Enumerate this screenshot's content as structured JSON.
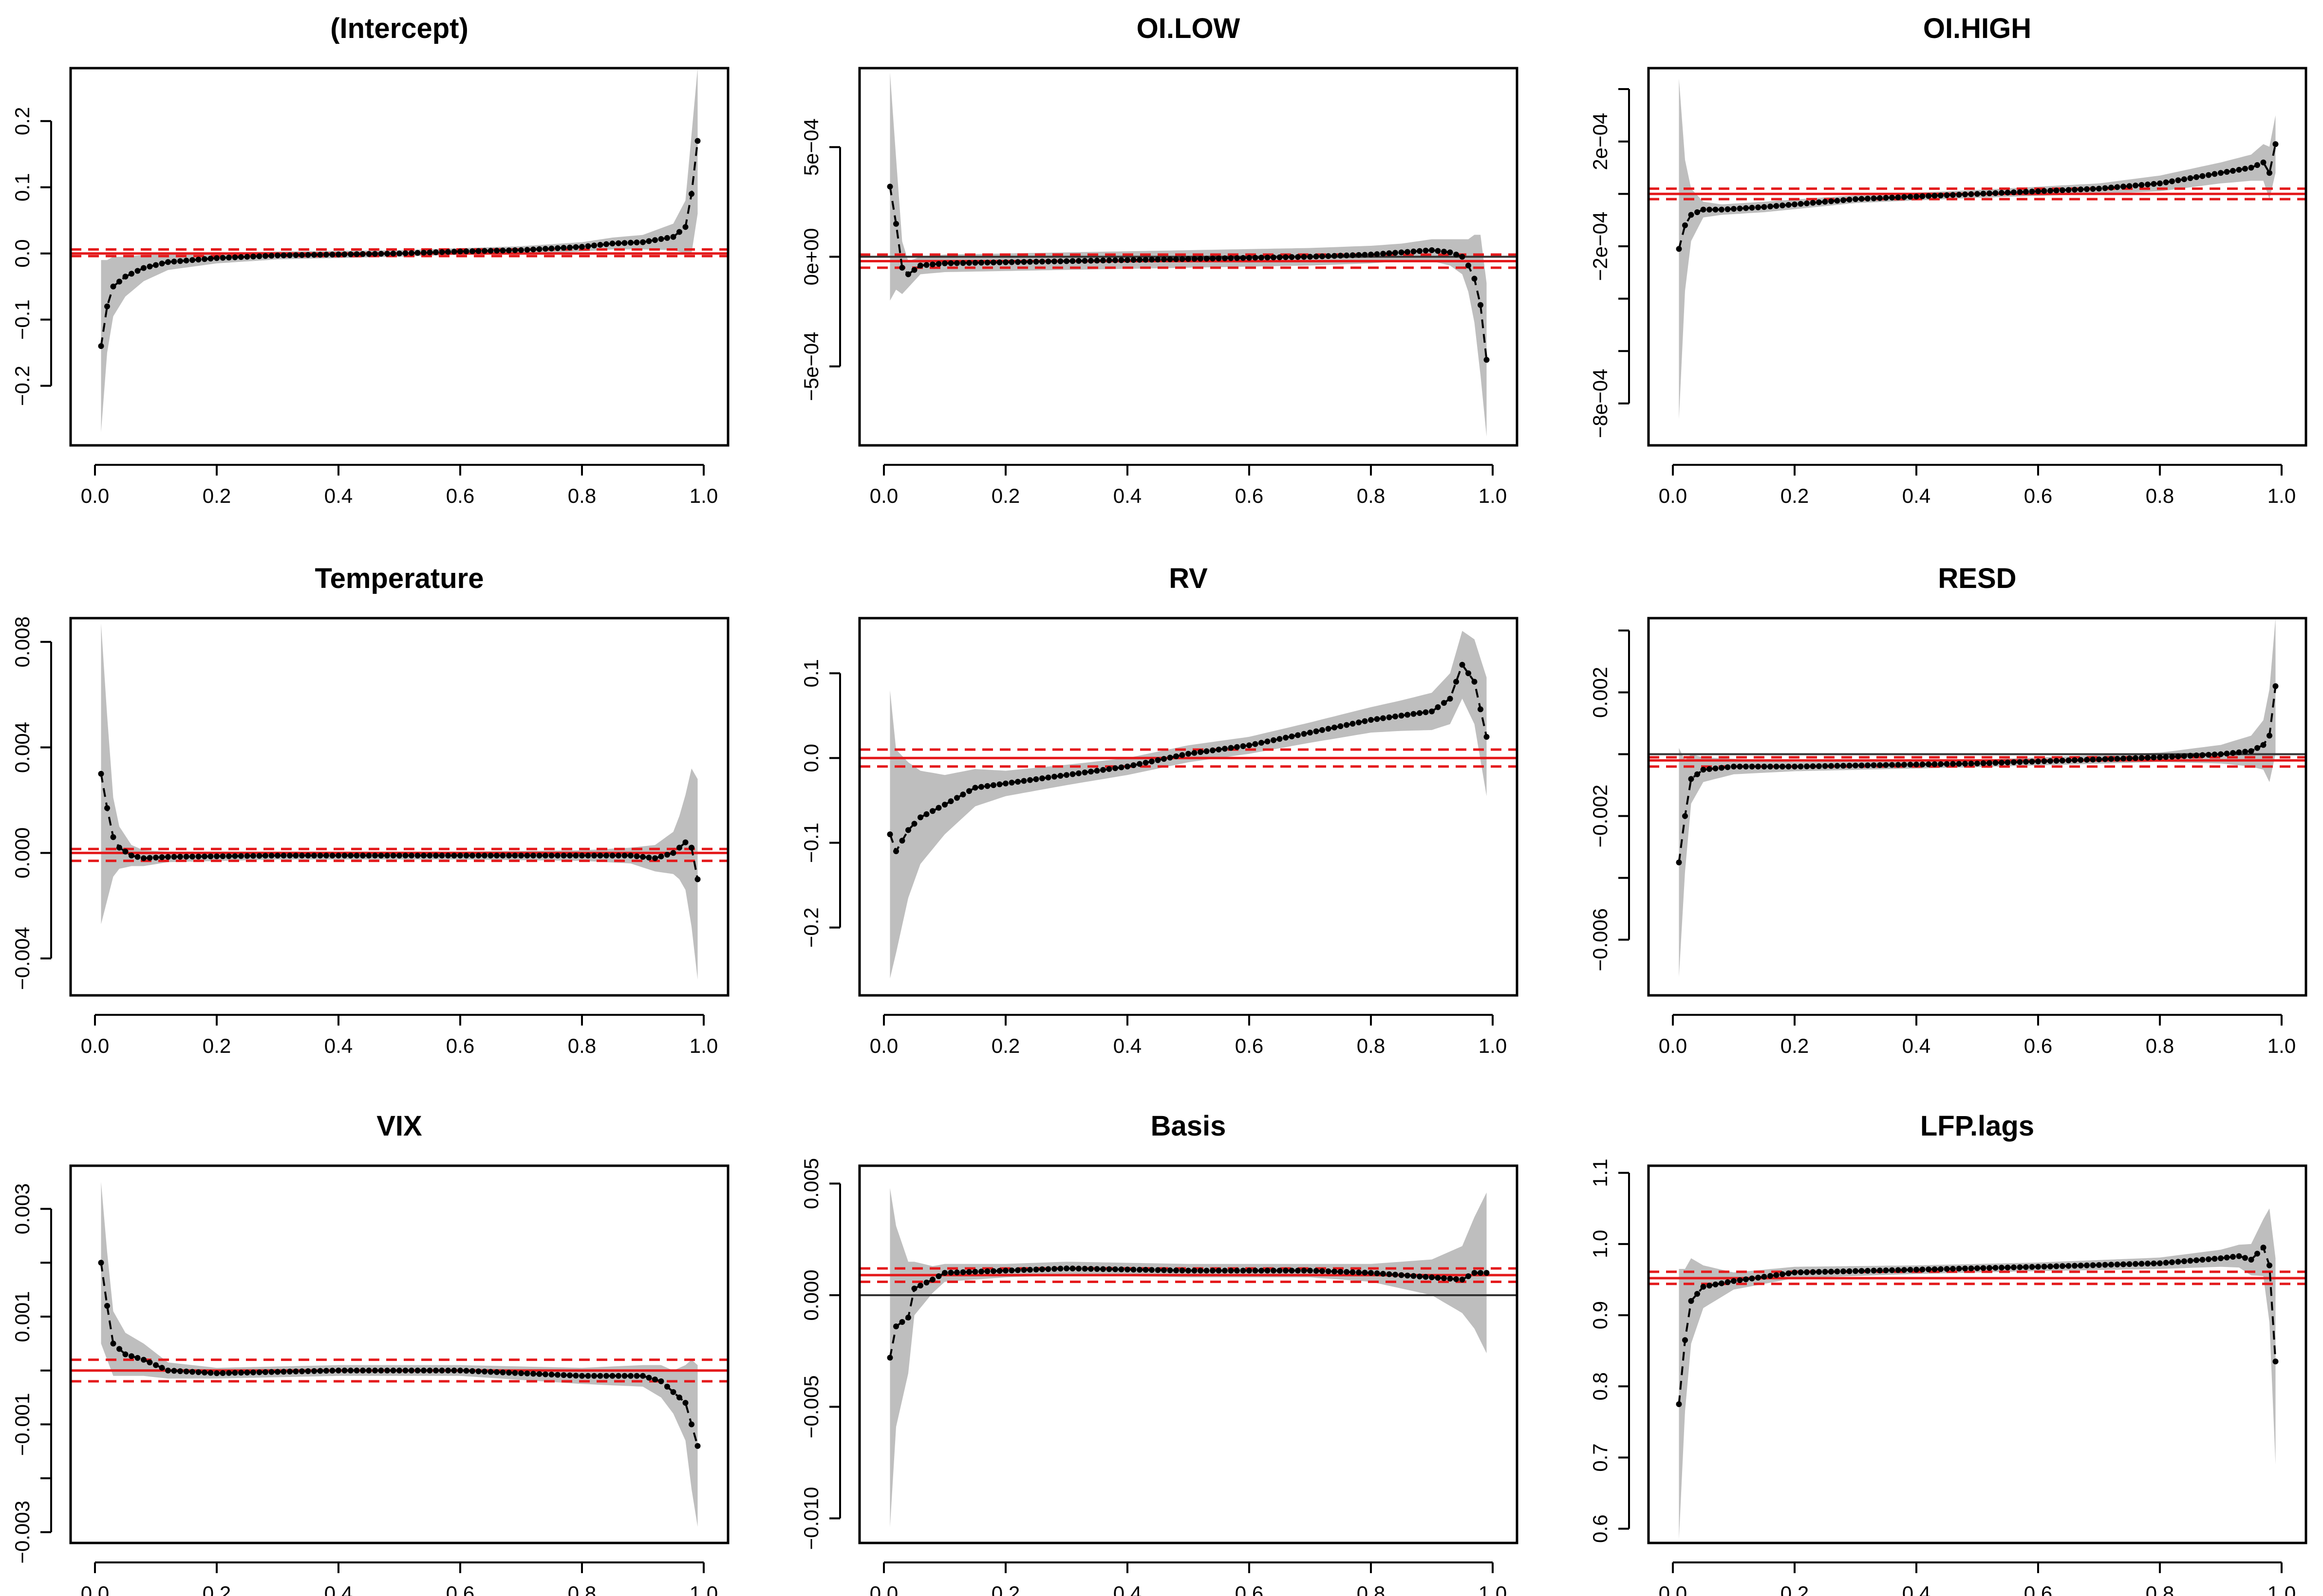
{
  "figure_caption": "",
  "chart_data": [
    {
      "type": "line",
      "title": "(Intercept)",
      "xlabel": "",
      "ylabel": "",
      "xlim": [
        0.0,
        1.0
      ],
      "ylim": [
        -0.29,
        0.28
      ],
      "x_ticks": [
        "0.0",
        "0.2",
        "0.4",
        "0.6",
        "0.8",
        "1.0"
      ],
      "y_ticks": [
        {
          "value": -0.2,
          "label": "−0.2"
        },
        {
          "value": -0.1,
          "label": "−0.1"
        },
        {
          "value": 0.0,
          "label": "0.0"
        },
        {
          "value": 0.1,
          "label": "0.1"
        },
        {
          "value": 0.2,
          "label": "0.2"
        }
      ],
      "anchors": [
        [
          0.01,
          -0.14,
          0.13
        ],
        [
          0.02,
          -0.08,
          0.07
        ],
        [
          0.03,
          -0.05,
          0.045
        ],
        [
          0.05,
          -0.035,
          0.03
        ],
        [
          0.08,
          -0.022,
          0.02
        ],
        [
          0.12,
          -0.013,
          0.012
        ],
        [
          0.2,
          -0.007,
          0.008
        ],
        [
          0.3,
          -0.003,
          0.006
        ],
        [
          0.5,
          0.0,
          0.005
        ],
        [
          0.6,
          0.003,
          0.005
        ],
        [
          0.7,
          0.005,
          0.006
        ],
        [
          0.8,
          0.01,
          0.007
        ],
        [
          0.85,
          0.015,
          0.009
        ],
        [
          0.9,
          0.017,
          0.011
        ],
        [
          0.95,
          0.025,
          0.02
        ],
        [
          0.97,
          0.04,
          0.04
        ],
        [
          0.98,
          0.09,
          0.09
        ],
        [
          0.99,
          0.17,
          0.11
        ]
      ],
      "ols_estimate": 0.0,
      "ols_band": [
        -0.004,
        0.006
      ],
      "zero_line": 0.0
    },
    {
      "type": "line",
      "title": "OI.LOW",
      "xlabel": "",
      "ylabel": "",
      "xlim": [
        0.0,
        1.0
      ],
      "ylim": [
        -0.00086,
        0.00086
      ],
      "x_ticks": [
        "0.0",
        "0.2",
        "0.4",
        "0.6",
        "0.8",
        "1.0"
      ],
      "y_ticks": [
        {
          "value": -0.0005,
          "label": "−5e−04"
        },
        {
          "value": 0.0,
          "label": "0e+00"
        },
        {
          "value": 0.0005,
          "label": "5e−04"
        }
      ],
      "anchors": [
        [
          0.01,
          0.00032,
          0.00052
        ],
        [
          0.02,
          0.00015,
          0.0003
        ],
        [
          0.03,
          -5e-05,
          0.00012
        ],
        [
          0.04,
          -8e-05,
          6e-05
        ],
        [
          0.06,
          -4e-05,
          4e-05
        ],
        [
          0.1,
          -3e-05,
          4e-05
        ],
        [
          0.3,
          -2e-05,
          4e-05
        ],
        [
          0.5,
          -1e-05,
          4e-05
        ],
        [
          0.7,
          0.0,
          4e-05
        ],
        [
          0.8,
          1e-05,
          4e-05
        ],
        [
          0.85,
          2e-05,
          4e-05
        ],
        [
          0.9,
          3e-05,
          5e-05
        ],
        [
          0.93,
          2e-05,
          6e-05
        ],
        [
          0.95,
          0.0,
          8e-05
        ],
        [
          0.96,
          -4e-05,
          0.00012
        ],
        [
          0.97,
          -0.0001,
          0.0002
        ],
        [
          0.98,
          -0.00022,
          0.00032
        ],
        [
          0.99,
          -0.00047,
          0.00035
        ]
      ],
      "ols_estimate": -2e-05,
      "ols_band": [
        -5e-05,
        1e-05
      ],
      "zero_line": 0.0
    },
    {
      "type": "line",
      "title": "OI.HIGH",
      "xlabel": "",
      "ylabel": "",
      "xlim": [
        0.0,
        1.0
      ],
      "ylim": [
        -0.00096,
        0.00048
      ],
      "x_ticks": [
        "0.0",
        "0.2",
        "0.4",
        "0.6",
        "0.8",
        "1.0"
      ],
      "y_ticks": [
        {
          "value": -0.0008,
          "label": "−8e−04"
        },
        {
          "value": -0.0006,
          "label": ""
        },
        {
          "value": -0.0004,
          "label": ""
        },
        {
          "value": -0.0002,
          "label": "−2e−04"
        },
        {
          "value": 0.0,
          "label": ""
        },
        {
          "value": 0.0002,
          "label": "2e−04"
        },
        {
          "value": 0.0004,
          "label": ""
        }
      ],
      "anchors": [
        [
          0.01,
          -0.00021,
          0.00065
        ],
        [
          0.02,
          -0.00012,
          0.00025
        ],
        [
          0.03,
          -8e-05,
          0.0001
        ],
        [
          0.05,
          -6e-05,
          3e-05
        ],
        [
          0.08,
          -6e-05,
          2e-05
        ],
        [
          0.15,
          -5e-05,
          2e-05
        ],
        [
          0.3,
          -2e-05,
          1.5e-05
        ],
        [
          0.5,
          0.0,
          1.5e-05
        ],
        [
          0.7,
          2e-05,
          2e-05
        ],
        [
          0.8,
          4e-05,
          3e-05
        ],
        [
          0.9,
          8e-05,
          4e-05
        ],
        [
          0.95,
          0.0001,
          5e-05
        ],
        [
          0.97,
          0.00012,
          7e-05
        ],
        [
          0.98,
          8e-05,
          0.0001
        ],
        [
          0.99,
          0.00019,
          0.00011
        ]
      ],
      "ols_estimate": 0.0,
      "ols_band": [
        -2e-05,
        2e-05
      ],
      "zero_line": 0.0
    },
    {
      "type": "line",
      "title": "Temperature",
      "xlabel": "",
      "ylabel": "",
      "xlim": [
        0.0,
        1.0
      ],
      "ylim": [
        -0.0054,
        0.0089
      ],
      "x_ticks": [
        "0.0",
        "0.2",
        "0.4",
        "0.6",
        "0.8",
        "1.0"
      ],
      "y_ticks": [
        {
          "value": -0.004,
          "label": "−0.004"
        },
        {
          "value": 0.0,
          "label": "0.000"
        },
        {
          "value": 0.004,
          "label": "0.004"
        },
        {
          "value": 0.008,
          "label": "0.008"
        }
      ],
      "anchors": [
        [
          0.01,
          0.003,
          0.0057
        ],
        [
          0.02,
          0.0017,
          0.0035
        ],
        [
          0.03,
          0.0006,
          0.0015
        ],
        [
          0.04,
          0.0002,
          0.0008
        ],
        [
          0.06,
          -0.0001,
          0.0004
        ],
        [
          0.08,
          -0.0002,
          0.0003
        ],
        [
          0.12,
          -0.00015,
          0.0002
        ],
        [
          0.3,
          -0.0001,
          0.00015
        ],
        [
          0.6,
          -0.0001,
          0.00015
        ],
        [
          0.8,
          -0.0001,
          0.0002
        ],
        [
          0.88,
          -0.0001,
          0.0003
        ],
        [
          0.92,
          -0.0002,
          0.0005
        ],
        [
          0.95,
          0.0,
          0.0008
        ],
        [
          0.96,
          0.0002,
          0.0012
        ],
        [
          0.97,
          0.0004,
          0.0018
        ],
        [
          0.98,
          0.0002,
          0.003
        ],
        [
          0.99,
          -0.001,
          0.0038
        ]
      ],
      "ols_estimate": 0.0,
      "ols_band": [
        -0.0003,
        0.00015
      ],
      "zero_line": 0.0
    },
    {
      "type": "line",
      "title": "RV",
      "xlabel": "",
      "ylabel": "",
      "xlim": [
        0.0,
        1.0
      ],
      "ylim": [
        -0.28,
        0.165
      ],
      "x_ticks": [
        "0.0",
        "0.2",
        "0.4",
        "0.6",
        "0.8",
        "1.0"
      ],
      "y_ticks": [
        {
          "value": -0.2,
          "label": "−0.2"
        },
        {
          "value": -0.1,
          "label": "−0.1"
        },
        {
          "value": 0.0,
          "label": "0.0"
        },
        {
          "value": 0.1,
          "label": "0.1"
        }
      ],
      "anchors": [
        [
          0.01,
          -0.09,
          0.17
        ],
        [
          0.02,
          -0.11,
          0.12
        ],
        [
          0.04,
          -0.085,
          0.08
        ],
        [
          0.06,
          -0.07,
          0.055
        ],
        [
          0.1,
          -0.055,
          0.035
        ],
        [
          0.15,
          -0.035,
          0.022
        ],
        [
          0.2,
          -0.03,
          0.015
        ],
        [
          0.3,
          -0.02,
          0.012
        ],
        [
          0.4,
          -0.01,
          0.01
        ],
        [
          0.5,
          0.005,
          0.01
        ],
        [
          0.6,
          0.015,
          0.01
        ],
        [
          0.7,
          0.03,
          0.012
        ],
        [
          0.8,
          0.045,
          0.015
        ],
        [
          0.85,
          0.05,
          0.018
        ],
        [
          0.9,
          0.055,
          0.022
        ],
        [
          0.93,
          0.07,
          0.03
        ],
        [
          0.95,
          0.11,
          0.04
        ],
        [
          0.97,
          0.09,
          0.05
        ],
        [
          0.99,
          0.025,
          0.07
        ]
      ],
      "ols_estimate": 0.0,
      "ols_band": [
        -0.01,
        0.01
      ],
      "zero_line": 0.0
    },
    {
      "type": "line",
      "title": "RESD",
      "xlabel": "",
      "ylabel": "",
      "xlim": [
        0.0,
        1.0
      ],
      "ylim": [
        -0.0078,
        0.0044
      ],
      "x_ticks": [
        "0.0",
        "0.2",
        "0.4",
        "0.6",
        "0.8",
        "1.0"
      ],
      "y_ticks": [
        {
          "value": -0.006,
          "label": "−0.006"
        },
        {
          "value": -0.004,
          "label": ""
        },
        {
          "value": -0.002,
          "label": "−0.002"
        },
        {
          "value": 0.0,
          "label": ""
        },
        {
          "value": 0.002,
          "label": "0.002"
        },
        {
          "value": 0.004,
          "label": ""
        }
      ],
      "anchors": [
        [
          0.01,
          -0.0035,
          0.0037
        ],
        [
          0.02,
          -0.002,
          0.0018
        ],
        [
          0.03,
          -0.0008,
          0.0008
        ],
        [
          0.05,
          -0.0005,
          0.0004
        ],
        [
          0.1,
          -0.0004,
          0.00025
        ],
        [
          0.2,
          -0.0004,
          0.00015
        ],
        [
          0.5,
          -0.0003,
          0.00012
        ],
        [
          0.8,
          -0.0001,
          0.00015
        ],
        [
          0.9,
          0.0,
          0.0003
        ],
        [
          0.95,
          0.0001,
          0.0005
        ],
        [
          0.97,
          0.0003,
          0.0008
        ],
        [
          0.98,
          0.0006,
          0.0015
        ],
        [
          0.99,
          0.0022,
          0.0022
        ]
      ],
      "ols_estimate": -0.0002,
      "ols_band": [
        -0.0004,
        -0.0001
      ],
      "zero_line": 0.0
    },
    {
      "type": "line",
      "title": "VIX",
      "xlabel": "",
      "ylabel": "",
      "xlim": [
        0.0,
        1.0
      ],
      "ylim": [
        -0.0032,
        0.0038
      ],
      "x_ticks": [
        "0.0",
        "0.2",
        "0.4",
        "0.6",
        "0.8",
        "1.0"
      ],
      "y_ticks": [
        {
          "value": -0.003,
          "label": "−0.003"
        },
        {
          "value": -0.002,
          "label": ""
        },
        {
          "value": -0.001,
          "label": "−0.001"
        },
        {
          "value": 0.0,
          "label": ""
        },
        {
          "value": 0.001,
          "label": "0.001"
        },
        {
          "value": 0.002,
          "label": ""
        },
        {
          "value": 0.003,
          "label": "0.003"
        }
      ],
      "anchors": [
        [
          0.01,
          0.002,
          0.0015
        ],
        [
          0.02,
          0.0012,
          0.001
        ],
        [
          0.03,
          0.0005,
          0.0006
        ],
        [
          0.05,
          0.0003,
          0.0004
        ],
        [
          0.08,
          0.0002,
          0.0003
        ],
        [
          0.12,
          0.0,
          0.00015
        ],
        [
          0.2,
          -5e-05,
          0.0001
        ],
        [
          0.4,
          0.0,
          0.0001
        ],
        [
          0.6,
          0.0,
          0.0001
        ],
        [
          0.8,
          -0.0001,
          0.00015
        ],
        [
          0.9,
          -0.0001,
          0.0002
        ],
        [
          0.93,
          -0.0002,
          0.0003
        ],
        [
          0.95,
          -0.0004,
          0.0004
        ],
        [
          0.97,
          -0.0006,
          0.0007
        ],
        [
          0.98,
          -0.001,
          0.0012
        ],
        [
          0.99,
          -0.0014,
          0.0015
        ]
      ],
      "ols_estimate": 0.0,
      "ols_band": [
        -0.0002,
        0.0002
      ],
      "zero_line": 0.0
    },
    {
      "type": "line",
      "title": "Basis",
      "xlabel": "",
      "ylabel": "",
      "xlim": [
        0.0,
        1.0
      ],
      "ylim": [
        -0.0111,
        0.0058
      ],
      "x_ticks": [
        "0.0",
        "0.2",
        "0.4",
        "0.6",
        "0.8",
        "1.0"
      ],
      "y_ticks": [
        {
          "value": -0.01,
          "label": "−0.010"
        },
        {
          "value": -0.005,
          "label": "−0.005"
        },
        {
          "value": 0.0,
          "label": "0.000"
        },
        {
          "value": 0.005,
          "label": "0.005"
        }
      ],
      "anchors": [
        [
          0.01,
          -0.0028,
          0.0076
        ],
        [
          0.02,
          -0.0014,
          0.0045
        ],
        [
          0.04,
          -0.001,
          0.0025
        ],
        [
          0.05,
          0.0003,
          0.0012
        ],
        [
          0.08,
          0.0007,
          0.0006
        ],
        [
          0.1,
          0.001,
          0.0004
        ],
        [
          0.2,
          0.0011,
          0.0003
        ],
        [
          0.3,
          0.0012,
          0.0003
        ],
        [
          0.5,
          0.0011,
          0.0003
        ],
        [
          0.7,
          0.0011,
          0.0003
        ],
        [
          0.8,
          0.001,
          0.0004
        ],
        [
          0.9,
          0.0008,
          0.0008
        ],
        [
          0.95,
          0.0007,
          0.0015
        ],
        [
          0.97,
          0.001,
          0.0025
        ],
        [
          0.99,
          0.001,
          0.0036
        ]
      ],
      "ols_estimate": 0.0009,
      "ols_band": [
        0.0006,
        0.0012
      ],
      "zero_line": 0.0
    },
    {
      "type": "line",
      "title": "LFP.lags",
      "xlabel": "",
      "ylabel": "",
      "xlim": [
        0.0,
        1.0
      ],
      "ylim": [
        0.58,
        1.11
      ],
      "x_ticks": [
        "0.0",
        "0.2",
        "0.4",
        "0.6",
        "0.8",
        "1.0"
      ],
      "y_ticks": [
        {
          "value": 0.6,
          "label": "0.6"
        },
        {
          "value": 0.7,
          "label": "0.7"
        },
        {
          "value": 0.8,
          "label": "0.8"
        },
        {
          "value": 0.9,
          "label": "0.9"
        },
        {
          "value": 1.0,
          "label": "1.0"
        },
        {
          "value": 1.1,
          "label": "1.1"
        }
      ],
      "anchors": [
        [
          0.01,
          0.775,
          0.19
        ],
        [
          0.02,
          0.865,
          0.1
        ],
        [
          0.03,
          0.92,
          0.06
        ],
        [
          0.05,
          0.94,
          0.03
        ],
        [
          0.1,
          0.948,
          0.012
        ],
        [
          0.2,
          0.96,
          0.008
        ],
        [
          0.4,
          0.964,
          0.006
        ],
        [
          0.6,
          0.968,
          0.006
        ],
        [
          0.8,
          0.973,
          0.008
        ],
        [
          0.9,
          0.98,
          0.012
        ],
        [
          0.93,
          0.983,
          0.016
        ],
        [
          0.95,
          0.978,
          0.022
        ],
        [
          0.97,
          0.995,
          0.04
        ],
        [
          0.98,
          0.97,
          0.08
        ],
        [
          0.99,
          0.835,
          0.145
        ]
      ],
      "ols_estimate": 0.952,
      "ols_band": [
        0.944,
        0.961
      ],
      "zero_line": null
    }
  ]
}
